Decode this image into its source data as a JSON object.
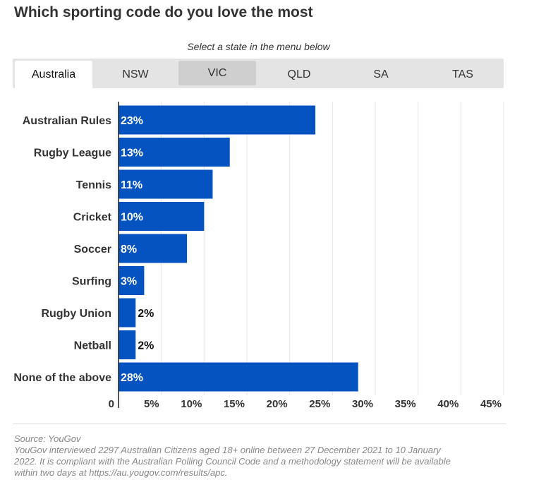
{
  "header": {
    "title": "Which sporting code do you love the most",
    "subtitle": "Select a state in the menu below"
  },
  "tabs": [
    {
      "label": "Australia",
      "state": "active"
    },
    {
      "label": "NSW",
      "state": "normal"
    },
    {
      "label": "VIC",
      "state": "hover"
    },
    {
      "label": "QLD",
      "state": "normal"
    },
    {
      "label": "SA",
      "state": "normal"
    },
    {
      "label": "TAS",
      "state": "normal"
    }
  ],
  "chart_data": {
    "type": "bar",
    "orientation": "horizontal",
    "categories": [
      "Australian Rules",
      "Rugby League",
      "Tennis",
      "Cricket",
      "Soccer",
      "Surfing",
      "Rugby Union",
      "Netball",
      "None of the above"
    ],
    "values": [
      23,
      13,
      11,
      10,
      8,
      3,
      2,
      2,
      28
    ],
    "data_labels": [
      "23%",
      "13%",
      "11%",
      "10%",
      "8%",
      "3%",
      "2%",
      "2%",
      "28%"
    ],
    "xlim": [
      0,
      45
    ],
    "xticks": [
      0,
      5,
      10,
      15,
      20,
      25,
      30,
      35,
      40,
      45
    ],
    "xtick_labels": [
      "0",
      "5%",
      "10%",
      "15%",
      "20%",
      "25%",
      "30%",
      "35%",
      "40%",
      "45%"
    ],
    "bar_color": "#0553c1",
    "grid": true
  },
  "footer": {
    "source": "Source: YouGov",
    "note_lines": [
      "YouGov interviewed 2297 Australian Citizens aged 18+ online between 27 December 2021 to 10 January",
      "2022. It is compliant with the Australian Polling Council Code and a methodology statement will be available",
      "within two days at https://au.yougov.com/results/apc."
    ]
  }
}
